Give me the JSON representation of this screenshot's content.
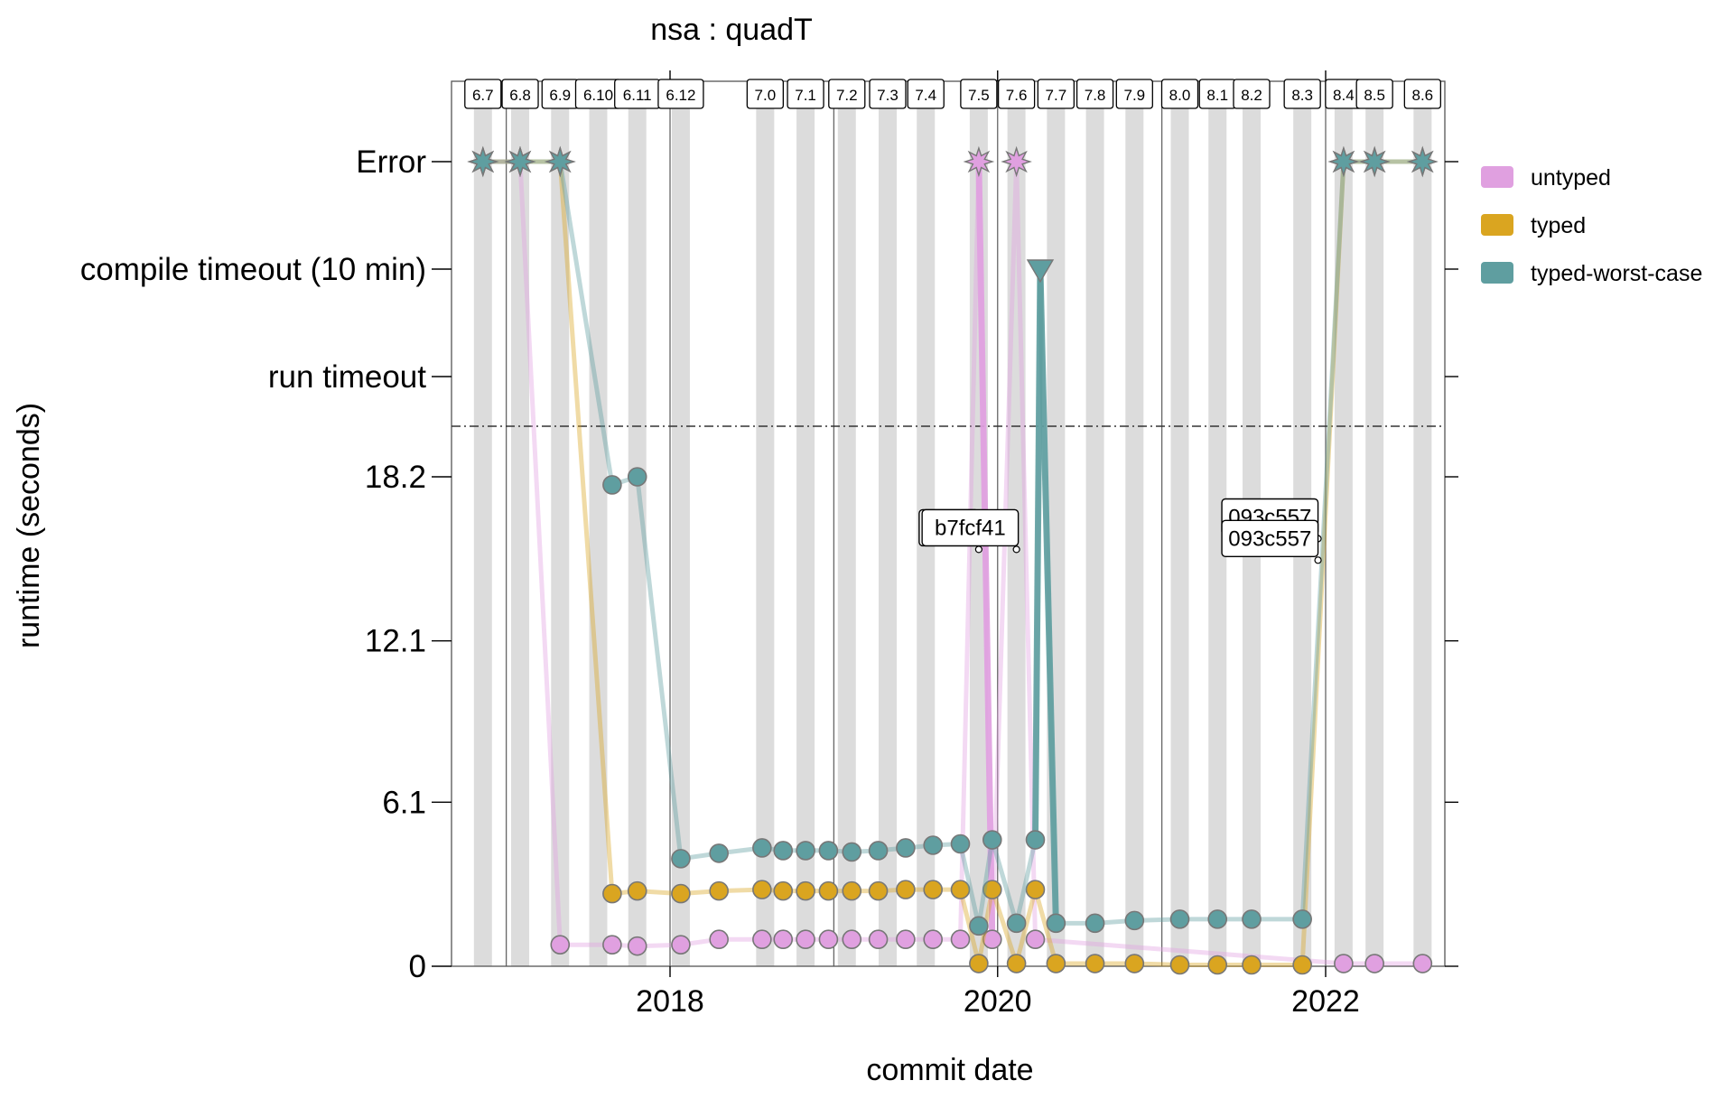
{
  "chart_data": {
    "type": "line",
    "title": "nsa : quadT",
    "xlabel": "commit date",
    "ylabel": "runtime (seconds)",
    "x_ticks": [
      "2018",
      "2020",
      "2022"
    ],
    "y_ticks": [
      "0",
      "6.1",
      "12.1",
      "18.2"
    ],
    "y_categories": [
      "run timeout",
      "compile timeout (10 min)",
      "Error"
    ],
    "ylim": [
      0,
      20
    ],
    "xlim": [
      "2016-10-15",
      "2022-09-15"
    ],
    "grid": false,
    "legend_position": "right",
    "versions": [
      {
        "label": "6.7",
        "date": "2016-11-10"
      },
      {
        "label": "6.8",
        "date": "2017-02-01"
      },
      {
        "label": "6.9",
        "date": "2017-05-01"
      },
      {
        "label": "6.10",
        "date": "2017-07-25"
      },
      {
        "label": "6.11",
        "date": "2017-10-20"
      },
      {
        "label": "6.12",
        "date": "2018-01-25"
      },
      {
        "label": "7.0",
        "date": "2018-08-01"
      },
      {
        "label": "7.1",
        "date": "2018-10-30"
      },
      {
        "label": "7.2",
        "date": "2019-01-30"
      },
      {
        "label": "7.3",
        "date": "2019-05-01"
      },
      {
        "label": "7.4",
        "date": "2019-07-25"
      },
      {
        "label": "7.5",
        "date": "2019-11-20"
      },
      {
        "label": "7.6",
        "date": "2020-02-12"
      },
      {
        "label": "7.7",
        "date": "2020-05-10"
      },
      {
        "label": "7.8",
        "date": "2020-08-05"
      },
      {
        "label": "7.9",
        "date": "2020-11-01"
      },
      {
        "label": "8.0",
        "date": "2021-02-10"
      },
      {
        "label": "8.1",
        "date": "2021-05-05"
      },
      {
        "label": "8.2",
        "date": "2021-07-20"
      },
      {
        "label": "8.3",
        "date": "2021-11-10"
      },
      {
        "label": "8.4",
        "date": "2022-02-10"
      },
      {
        "label": "8.5",
        "date": "2022-04-20"
      },
      {
        "label": "8.6",
        "date": "2022-08-05"
      }
    ],
    "series": [
      {
        "name": "untyped",
        "color": "#e0a0e0",
        "points": [
          {
            "x": "2016-11-10",
            "y": "Error"
          },
          {
            "x": "2017-02-01",
            "y": "Error"
          },
          {
            "x": "2017-05-01",
            "y": 0.8
          },
          {
            "x": "2017-08-25",
            "y": 0.8
          },
          {
            "x": "2017-10-20",
            "y": 0.75
          },
          {
            "x": "2018-01-25",
            "y": 0.8
          },
          {
            "x": "2018-04-20",
            "y": 1.0
          },
          {
            "x": "2018-07-25",
            "y": 1.0
          },
          {
            "x": "2018-09-10",
            "y": 1.0
          },
          {
            "x": "2018-10-30",
            "y": 1.0
          },
          {
            "x": "2018-12-20",
            "y": 1.0
          },
          {
            "x": "2019-02-10",
            "y": 1.0
          },
          {
            "x": "2019-04-10",
            "y": 1.0
          },
          {
            "x": "2019-06-10",
            "y": 1.0
          },
          {
            "x": "2019-08-10",
            "y": 1.0
          },
          {
            "x": "2019-10-10",
            "y": 1.0
          },
          {
            "x": "2019-11-20",
            "y": "Error"
          },
          {
            "x": "2019-12-20",
            "y": 1.0
          },
          {
            "x": "2020-02-12",
            "y": "Error"
          },
          {
            "x": "2020-03-25",
            "y": 1.0
          },
          {
            "x": "2022-02-10",
            "y": 0.1
          },
          {
            "x": "2022-04-20",
            "y": 0.1
          },
          {
            "x": "2022-08-05",
            "y": 0.1
          }
        ]
      },
      {
        "name": "typed",
        "color": "#daa520",
        "points": [
          {
            "x": "2016-11-10",
            "y": "Error"
          },
          {
            "x": "2017-02-01",
            "y": "Error"
          },
          {
            "x": "2017-05-01",
            "y": "Error"
          },
          {
            "x": "2017-08-25",
            "y": 2.7
          },
          {
            "x": "2017-10-20",
            "y": 2.8
          },
          {
            "x": "2018-01-25",
            "y": 2.7
          },
          {
            "x": "2018-04-20",
            "y": 2.8
          },
          {
            "x": "2018-07-25",
            "y": 2.85
          },
          {
            "x": "2018-09-10",
            "y": 2.8
          },
          {
            "x": "2018-10-30",
            "y": 2.8
          },
          {
            "x": "2018-12-20",
            "y": 2.8
          },
          {
            "x": "2019-02-10",
            "y": 2.8
          },
          {
            "x": "2019-04-10",
            "y": 2.8
          },
          {
            "x": "2019-06-10",
            "y": 2.85
          },
          {
            "x": "2019-08-10",
            "y": 2.85
          },
          {
            "x": "2019-10-10",
            "y": 2.85
          },
          {
            "x": "2019-11-20",
            "y": 0.1
          },
          {
            "x": "2019-12-20",
            "y": 2.85
          },
          {
            "x": "2020-02-12",
            "y": 0.1
          },
          {
            "x": "2020-03-25",
            "y": 2.85
          },
          {
            "x": "2020-05-10",
            "y": 0.1
          },
          {
            "x": "2020-08-05",
            "y": 0.1
          },
          {
            "x": "2020-11-01",
            "y": 0.1
          },
          {
            "x": "2021-02-10",
            "y": 0.05
          },
          {
            "x": "2021-05-05",
            "y": 0.05
          },
          {
            "x": "2021-07-20",
            "y": 0.05
          },
          {
            "x": "2021-11-10",
            "y": 0.05
          },
          {
            "x": "2022-02-10",
            "y": "Error"
          },
          {
            "x": "2022-04-20",
            "y": "Error"
          },
          {
            "x": "2022-08-05",
            "y": "Error"
          }
        ]
      },
      {
        "name": "typed-worst-case",
        "color": "#5f9ea0",
        "points": [
          {
            "x": "2016-11-10",
            "y": "Error"
          },
          {
            "x": "2017-02-01",
            "y": "Error"
          },
          {
            "x": "2017-05-01",
            "y": "Error"
          },
          {
            "x": "2017-08-25",
            "y": 17.9
          },
          {
            "x": "2017-10-20",
            "y": 18.2
          },
          {
            "x": "2018-01-25",
            "y": 4.0
          },
          {
            "x": "2018-04-20",
            "y": 4.2
          },
          {
            "x": "2018-07-25",
            "y": 4.4
          },
          {
            "x": "2018-09-10",
            "y": 4.3
          },
          {
            "x": "2018-10-30",
            "y": 4.3
          },
          {
            "x": "2018-12-20",
            "y": 4.3
          },
          {
            "x": "2019-02-10",
            "y": 4.25
          },
          {
            "x": "2019-04-10",
            "y": 4.3
          },
          {
            "x": "2019-06-10",
            "y": 4.4
          },
          {
            "x": "2019-08-10",
            "y": 4.5
          },
          {
            "x": "2019-10-10",
            "y": 4.55
          },
          {
            "x": "2019-11-20",
            "y": 1.5
          },
          {
            "x": "2019-12-20",
            "y": 4.7
          },
          {
            "x": "2020-02-12",
            "y": 1.6
          },
          {
            "x": "2020-03-25",
            "y": 4.7
          },
          {
            "x": "2020-04-05",
            "y": "compile timeout (10 min)"
          },
          {
            "x": "2020-05-10",
            "y": 1.6
          },
          {
            "x": "2020-08-05",
            "y": 1.6
          },
          {
            "x": "2020-11-01",
            "y": 1.7
          },
          {
            "x": "2021-02-10",
            "y": 1.75
          },
          {
            "x": "2021-05-05",
            "y": 1.75
          },
          {
            "x": "2021-07-20",
            "y": 1.75
          },
          {
            "x": "2021-11-10",
            "y": 1.75
          },
          {
            "x": "2022-02-10",
            "y": "Error"
          },
          {
            "x": "2022-04-20",
            "y": "Error"
          },
          {
            "x": "2022-08-05",
            "y": "Error"
          }
        ]
      }
    ],
    "annotations": [
      {
        "text": "d149",
        "x": "2019-11-20",
        "y": 15.5
      },
      {
        "text": "b7fcf41",
        "x": "2020-02-12",
        "y": 15.5
      },
      {
        "text": "093c557",
        "x": "2021-12-15",
        "y": 15.9
      },
      {
        "text": "093c557",
        "x": "2021-12-15",
        "y": 15.1
      }
    ]
  }
}
